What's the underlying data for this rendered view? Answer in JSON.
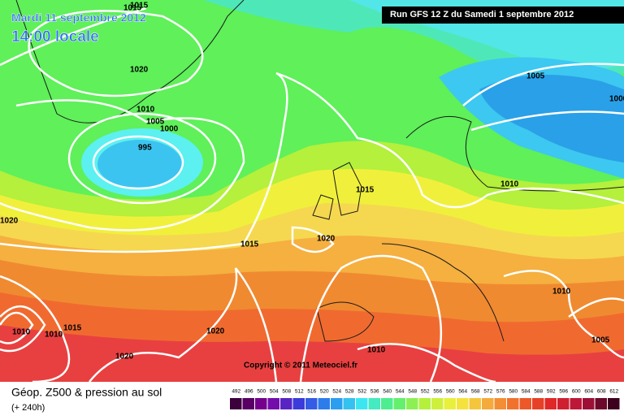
{
  "header": {
    "date": "Mardi 11 septembre 2012",
    "time": "14:00 locale",
    "run": "Run GFS 12 Z du Samedi 1 septembre 2012"
  },
  "isobar_labels": [
    "1015",
    "1020",
    "1010",
    "1005",
    "1000",
    "995",
    "1015",
    "1020",
    "1015",
    "1005",
    "1000",
    "1010",
    "1010",
    "1020",
    "1015",
    "1020",
    "1005",
    "1010",
    "1020",
    "1010",
    "1015",
    "1010"
  ],
  "copyright": "Copyright © 2011 Meteociel.fr",
  "footer": {
    "title": "Géop. Z500 & pression au sol",
    "lead": "(+ 240h)"
  },
  "legend": {
    "values": [
      492,
      496,
      500,
      504,
      508,
      512,
      516,
      520,
      524,
      528,
      532,
      536,
      540,
      544,
      548,
      552,
      556,
      560,
      564,
      568,
      572,
      576,
      580,
      584,
      588,
      592,
      596,
      600,
      604,
      608,
      612
    ]
  }
}
